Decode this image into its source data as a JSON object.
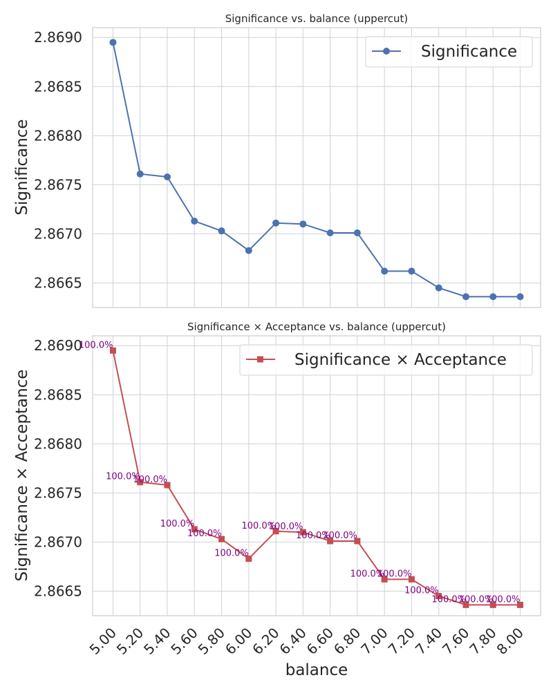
{
  "chart_data": [
    {
      "type": "line",
      "title": "Significance vs. balance (uppercut)",
      "xlabel": "",
      "ylabel": "Significance",
      "x": [
        5.0,
        5.2,
        5.4,
        5.6,
        5.8,
        6.0,
        6.2,
        6.4,
        6.6,
        6.8,
        7.0,
        7.2,
        7.4,
        7.6,
        7.8,
        8.0
      ],
      "ylim": [
        2.86625,
        2.8691
      ],
      "yticks": [
        "2.8665",
        "2.8670",
        "2.8675",
        "2.8680",
        "2.8685",
        "2.8690"
      ],
      "grid": true,
      "legend_position": "top-right",
      "series": [
        {
          "name": "Significance",
          "color": "#4c72b0",
          "marker": "circle",
          "values": [
            2.86895,
            2.86761,
            2.86758,
            2.86713,
            2.86703,
            2.86683,
            2.86711,
            2.8671,
            2.86701,
            2.86701,
            2.86662,
            2.86662,
            2.86645,
            2.86636,
            2.86636,
            2.86636
          ]
        }
      ]
    },
    {
      "type": "line",
      "title": "Significance × Acceptance vs. balance (uppercut)",
      "xlabel": "balance",
      "ylabel": "Significance × Acceptance",
      "x": [
        5.0,
        5.2,
        5.4,
        5.6,
        5.8,
        6.0,
        6.2,
        6.4,
        6.6,
        6.8,
        7.0,
        7.2,
        7.4,
        7.6,
        7.8,
        8.0
      ],
      "xticks": [
        "5.00",
        "5.20",
        "5.40",
        "5.60",
        "5.80",
        "6.00",
        "6.20",
        "6.40",
        "6.60",
        "6.80",
        "7.00",
        "7.20",
        "7.40",
        "7.60",
        "7.80",
        "8.00"
      ],
      "ylim": [
        2.86625,
        2.8691
      ],
      "yticks": [
        "2.8665",
        "2.8670",
        "2.8675",
        "2.8680",
        "2.8685",
        "2.8690"
      ],
      "grid": true,
      "legend_position": "top-right",
      "series": [
        {
          "name": "Significance × Acceptance",
          "color": "#c44e52",
          "marker": "square",
          "values": [
            2.86895,
            2.86761,
            2.86758,
            2.86713,
            2.86703,
            2.86683,
            2.86711,
            2.8671,
            2.86701,
            2.86701,
            2.86662,
            2.86662,
            2.86645,
            2.86636,
            2.86636,
            2.86636
          ],
          "labels": [
            "100.0%",
            "100.0%",
            "100.0%",
            "100.0%",
            "100.0%",
            "100.0%",
            "100.0%",
            "100.0%",
            "100.0%",
            "100.0%",
            "100.0%",
            "100.0%",
            "100.0%",
            "100.0%",
            "100.0%",
            "100.0%"
          ]
        }
      ]
    }
  ]
}
